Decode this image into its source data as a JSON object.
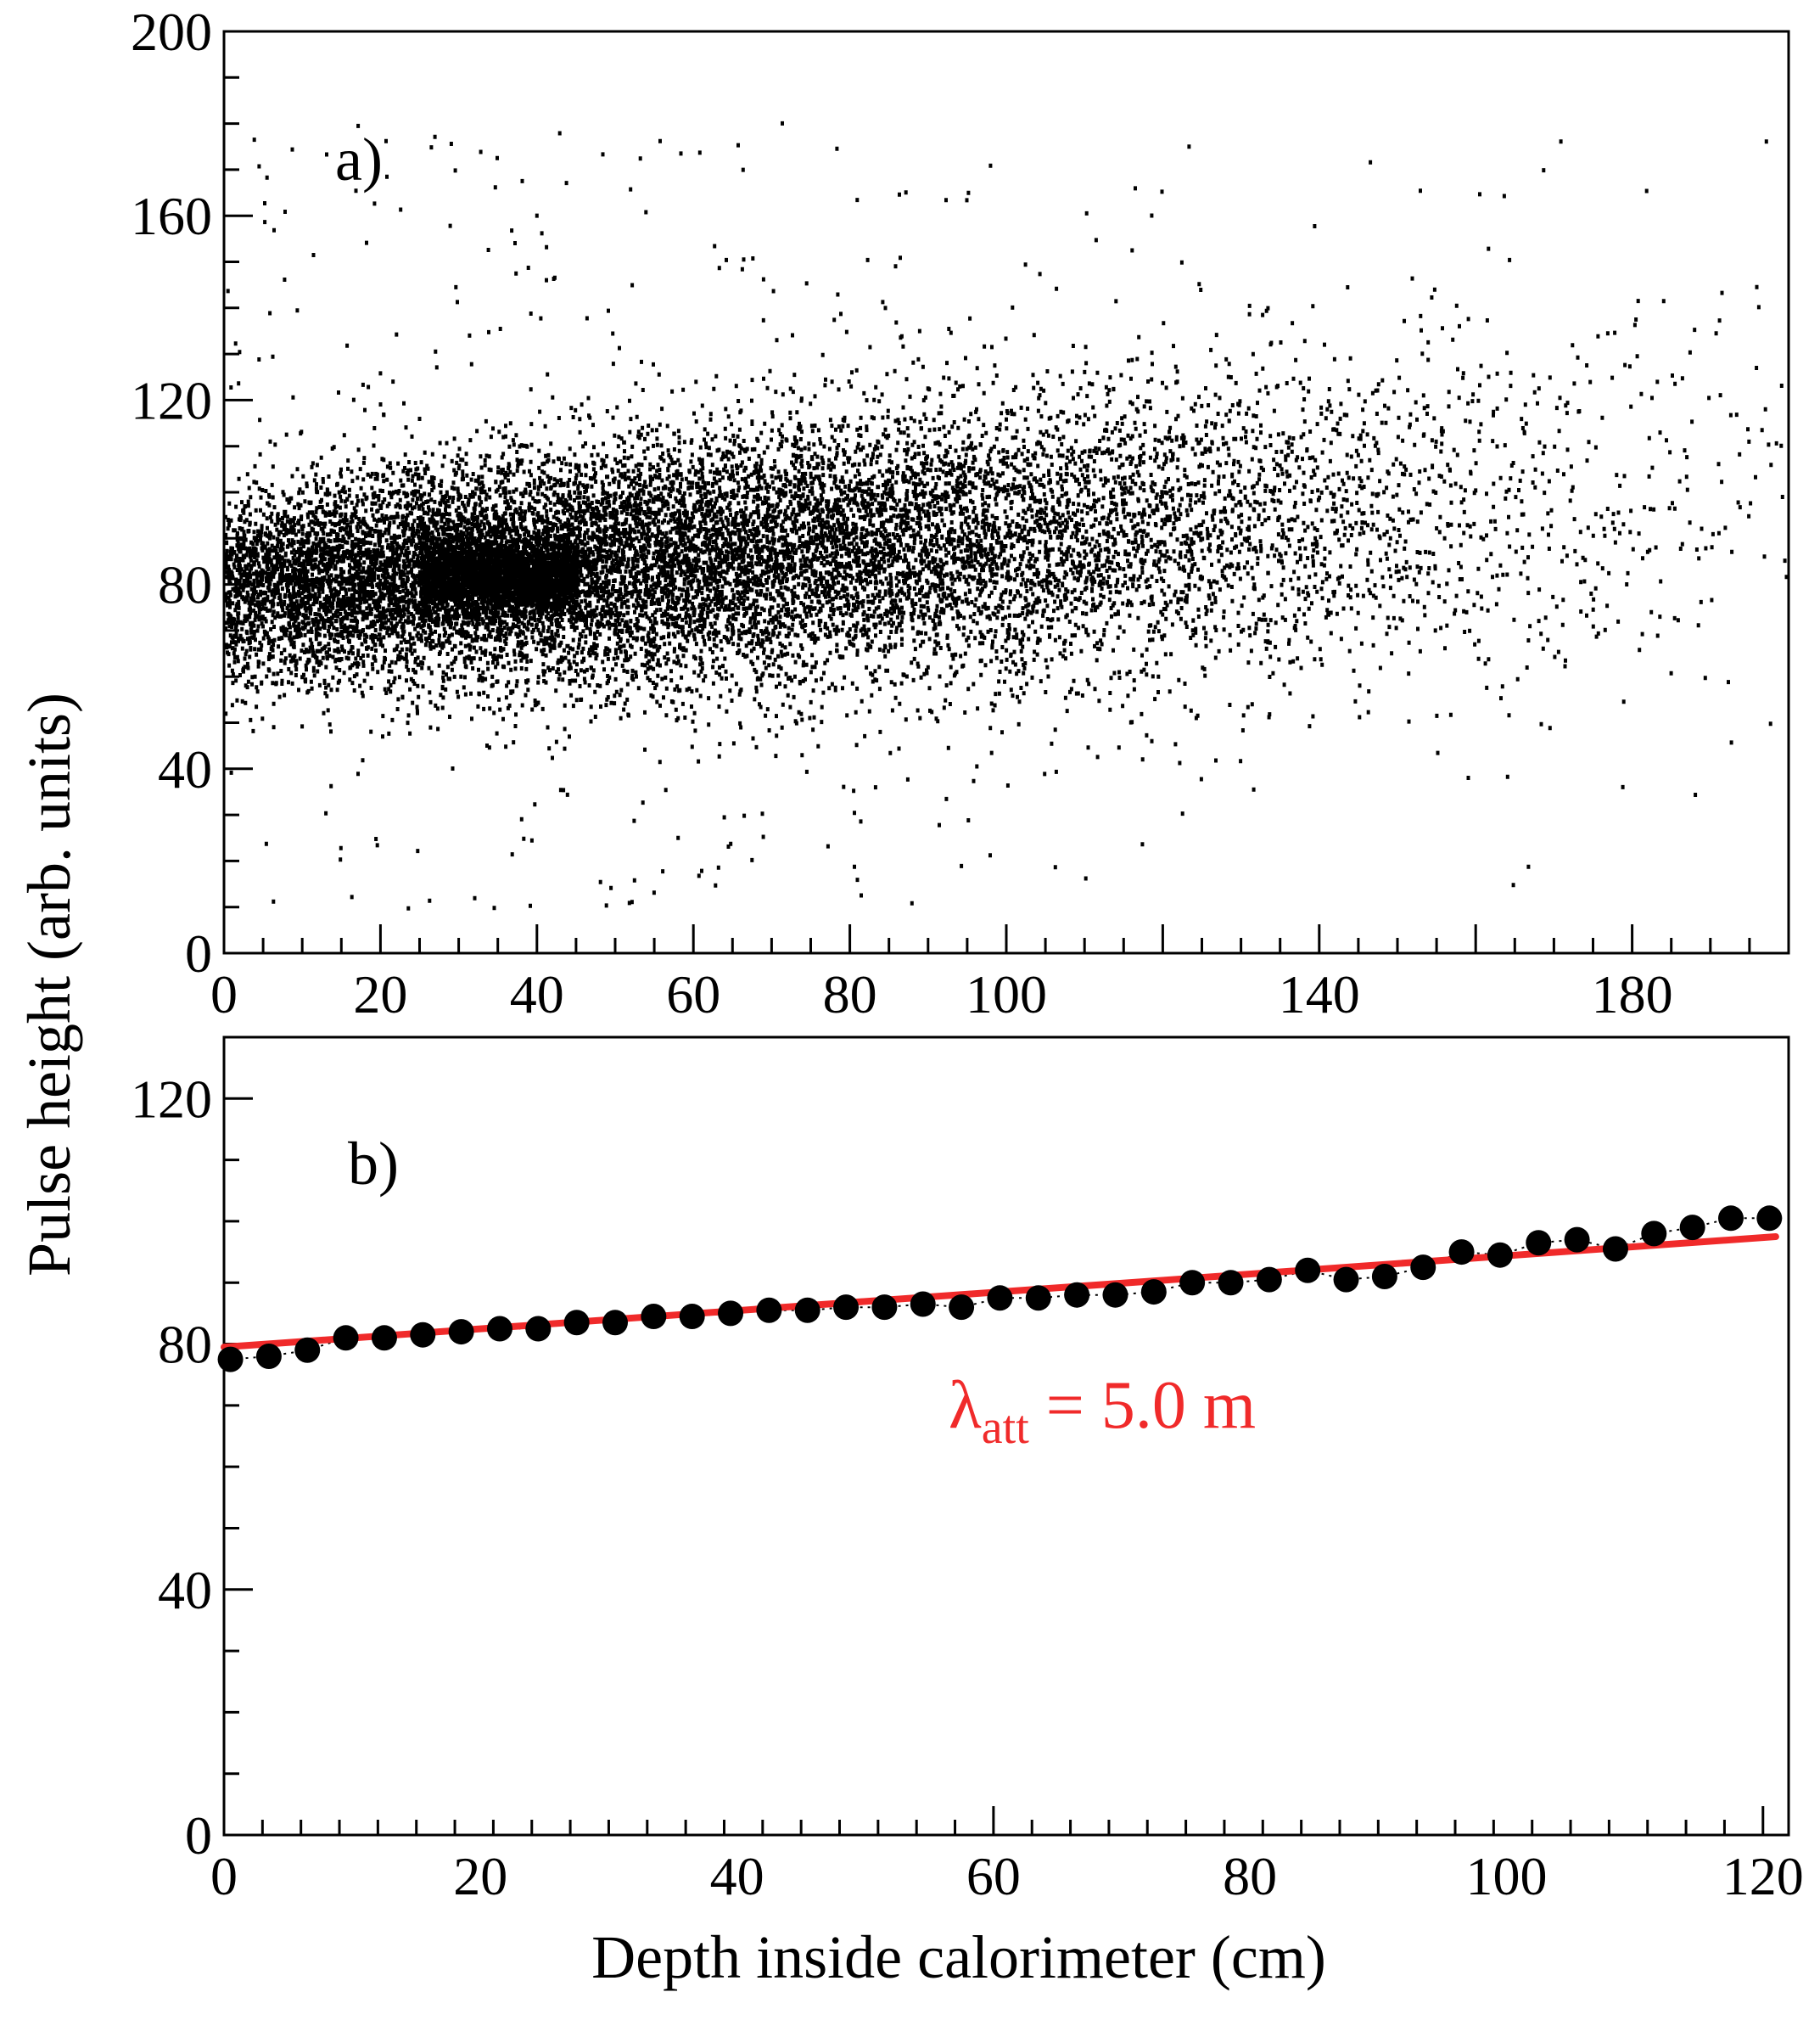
{
  "figure": {
    "ylabel": "Pulse height (arb. units)",
    "xlabel": "Depth inside calorimeter (cm)"
  },
  "chart_data": [
    {
      "type": "scatter",
      "panel_label": "a)",
      "xlim": [
        0,
        200
      ],
      "ylim": [
        0,
        200
      ],
      "x_ticks": [
        "0",
        "20",
        "40",
        "60",
        "80",
        "100",
        "140",
        "180"
      ],
      "x_tick_values": [
        0,
        20,
        40,
        60,
        80,
        100,
        140,
        180
      ],
      "y_ticks": [
        "0",
        "40",
        "80",
        "120",
        "160",
        "200"
      ],
      "y_tick_values": [
        0,
        40,
        80,
        120,
        160,
        200
      ],
      "marker_color": "#000000",
      "distribution": {
        "mean_start": 80,
        "mean_end": 100,
        "spread_start": 10,
        "spread_end": 22,
        "dense_core_x": [
          25,
          45
        ],
        "dense_core_y": [
          75,
          90
        ],
        "outlier_y_range": [
          10,
          182
        ]
      }
    },
    {
      "type": "line",
      "panel_label": "b)",
      "xlim": [
        0,
        122
      ],
      "ylim": [
        0,
        130
      ],
      "x_ticks": [
        "0",
        "20",
        "40",
        "60",
        "80",
        "100",
        "120"
      ],
      "x_tick_values": [
        0,
        20,
        40,
        60,
        80,
        100,
        120
      ],
      "y_ticks": [
        "0",
        "40",
        "80",
        "120"
      ],
      "y_tick_values": [
        0,
        40,
        80,
        120
      ],
      "series": [
        {
          "marker": "filled-circle",
          "color": "#000000",
          "x": [
            0.5,
            3.5,
            6.5,
            9.5,
            12.5,
            15.5,
            18.5,
            21.5,
            24.5,
            27.5,
            30.5,
            33.5,
            36.5,
            39.5,
            42.5,
            45.5,
            48.5,
            51.5,
            54.5,
            57.5,
            60.5,
            63.5,
            66.5,
            69.5,
            72.5,
            75.5,
            78.5,
            81.5,
            84.5,
            87.5,
            90.5,
            93.5,
            96.5,
            99.5,
            102.5,
            105.5,
            108.5,
            111.5,
            114.5,
            117.5,
            120.5
          ],
          "y": [
            77.5,
            78,
            79,
            81,
            81,
            81.5,
            82,
            82.5,
            82.5,
            83.5,
            83.5,
            84.5,
            84.5,
            85,
            85.5,
            85.5,
            86,
            86,
            86.5,
            86,
            87.5,
            87.5,
            88,
            88,
            88.5,
            90,
            90,
            90.5,
            92,
            90.5,
            91,
            92.5,
            95,
            94.5,
            96.5,
            97,
            95.5,
            98,
            99,
            100.5,
            100.5
          ]
        },
        {
          "style": "solid-fit-line",
          "color": "#f02a2a",
          "x": [
            0,
            121
          ],
          "y": [
            79.5,
            97.5
          ]
        }
      ],
      "annotation": {
        "lambda_symbol": "λ",
        "subscript": "att",
        "rest": " = 5.0 m",
        "color": "#f02a2a"
      }
    }
  ]
}
